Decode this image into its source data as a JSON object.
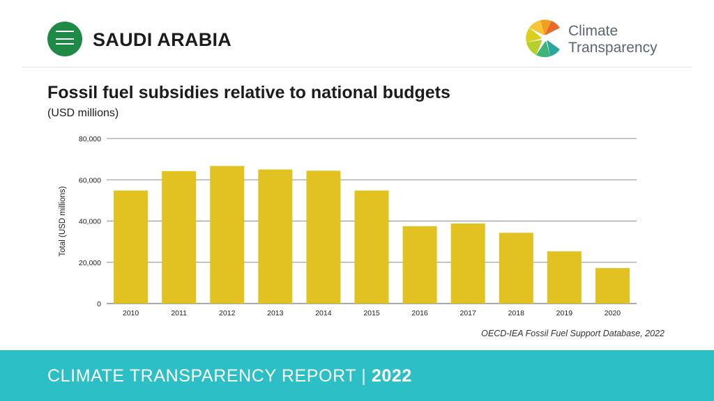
{
  "header": {
    "country": "SAUDI ARABIA",
    "logo_line1": "Climate",
    "logo_line2": "Transparency"
  },
  "colors": {
    "bar": "#e1c220",
    "footer": "#2cbfc6",
    "flag": "#1e8a46"
  },
  "chart_data": {
    "type": "bar",
    "title": "Fossil fuel subsidies relative to national budgets",
    "subtitle": "(USD millions)",
    "ylabel": "Total (USD millions)",
    "xlabel": "",
    "categories": [
      "2010",
      "2011",
      "2012",
      "2013",
      "2014",
      "2015",
      "2016",
      "2017",
      "2018",
      "2019",
      "2020"
    ],
    "values": [
      54800,
      64200,
      66700,
      65000,
      64400,
      54800,
      37500,
      38800,
      34300,
      25300,
      17200
    ],
    "ylim": [
      0,
      80000
    ],
    "yticks": [
      0,
      20000,
      40000,
      60000,
      80000
    ],
    "ytick_labels": [
      "0",
      "20,000",
      "40,000",
      "60,000",
      "80,000"
    ],
    "grid": true
  },
  "source": "OECD-IEA Fossil Fuel Support Database, 2022",
  "footer": {
    "text": "CLIMATE TRANSPARENCY REPORT | ",
    "year": "2022"
  }
}
